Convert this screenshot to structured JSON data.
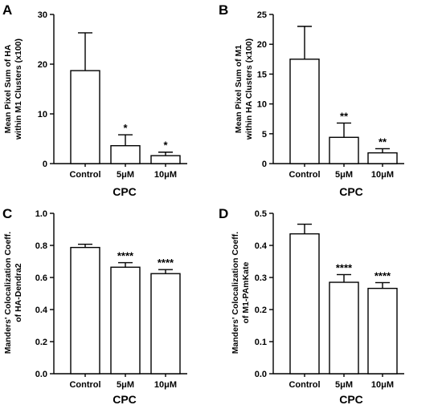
{
  "chart_data": [
    {
      "panel": "A",
      "type": "bar",
      "categories": [
        "Control",
        "5μM",
        "10μM"
      ],
      "values": [
        18.7,
        3.6,
        1.6
      ],
      "errors": [
        7.6,
        2.2,
        0.7
      ],
      "significance": [
        "",
        "*",
        "*"
      ],
      "ylabel_lines": [
        "Mean Pixel Sum of HA",
        "within M1 Clusters (x100)"
      ],
      "xlabel": "CPC",
      "ylim": [
        0,
        30
      ],
      "yticks": [
        0,
        10,
        20,
        30
      ],
      "ytick_labels": [
        "0",
        "10",
        "20",
        "30"
      ],
      "grid": false,
      "legend": "none"
    },
    {
      "panel": "B",
      "type": "bar",
      "categories": [
        "Control",
        "5μM",
        "10μM"
      ],
      "values": [
        17.5,
        4.4,
        1.8
      ],
      "errors": [
        5.5,
        2.4,
        0.7
      ],
      "significance": [
        "",
        "**",
        "**"
      ],
      "ylabel_lines": [
        "Mean Pixel Sum of M1",
        "within HA Clusters (x100)"
      ],
      "xlabel": "CPC",
      "ylim": [
        0,
        25
      ],
      "yticks": [
        0,
        5,
        10,
        15,
        20,
        25
      ],
      "ytick_labels": [
        "0",
        "5",
        "10",
        "15",
        "20",
        "25"
      ],
      "grid": false,
      "legend": "none"
    },
    {
      "panel": "C",
      "type": "bar",
      "categories": [
        "Control",
        "5μM",
        "10μM"
      ],
      "values": [
        0.787,
        0.664,
        0.624
      ],
      "errors": [
        0.02,
        0.028,
        0.025
      ],
      "significance": [
        "",
        "****",
        "****"
      ],
      "ylabel_lines": [
        "Manders' Colocalization Coeff.",
        "of HA-Dendra2"
      ],
      "xlabel": "CPC",
      "ylim": [
        0,
        1.0
      ],
      "yticks": [
        0,
        0.2,
        0.4,
        0.6,
        0.8,
        1.0
      ],
      "ytick_labels": [
        "0.0",
        "0.2",
        "0.4",
        "0.6",
        "0.8",
        "1.0"
      ],
      "grid": false,
      "legend": "none"
    },
    {
      "panel": "D",
      "type": "bar",
      "categories": [
        "Control",
        "5μM",
        "10μM"
      ],
      "values": [
        0.436,
        0.285,
        0.266
      ],
      "errors": [
        0.03,
        0.024,
        0.018
      ],
      "significance": [
        "",
        "****",
        "****"
      ],
      "ylabel_lines": [
        "Manders' Colocalization Coeff.",
        "of M1-PAmKate"
      ],
      "xlabel": "CPC",
      "ylim": [
        0,
        0.5
      ],
      "yticks": [
        0,
        0.1,
        0.2,
        0.3,
        0.4,
        0.5
      ],
      "ytick_labels": [
        "0.0",
        "0.1",
        "0.2",
        "0.3",
        "0.4",
        "0.5"
      ],
      "grid": false,
      "legend": "none"
    }
  ]
}
